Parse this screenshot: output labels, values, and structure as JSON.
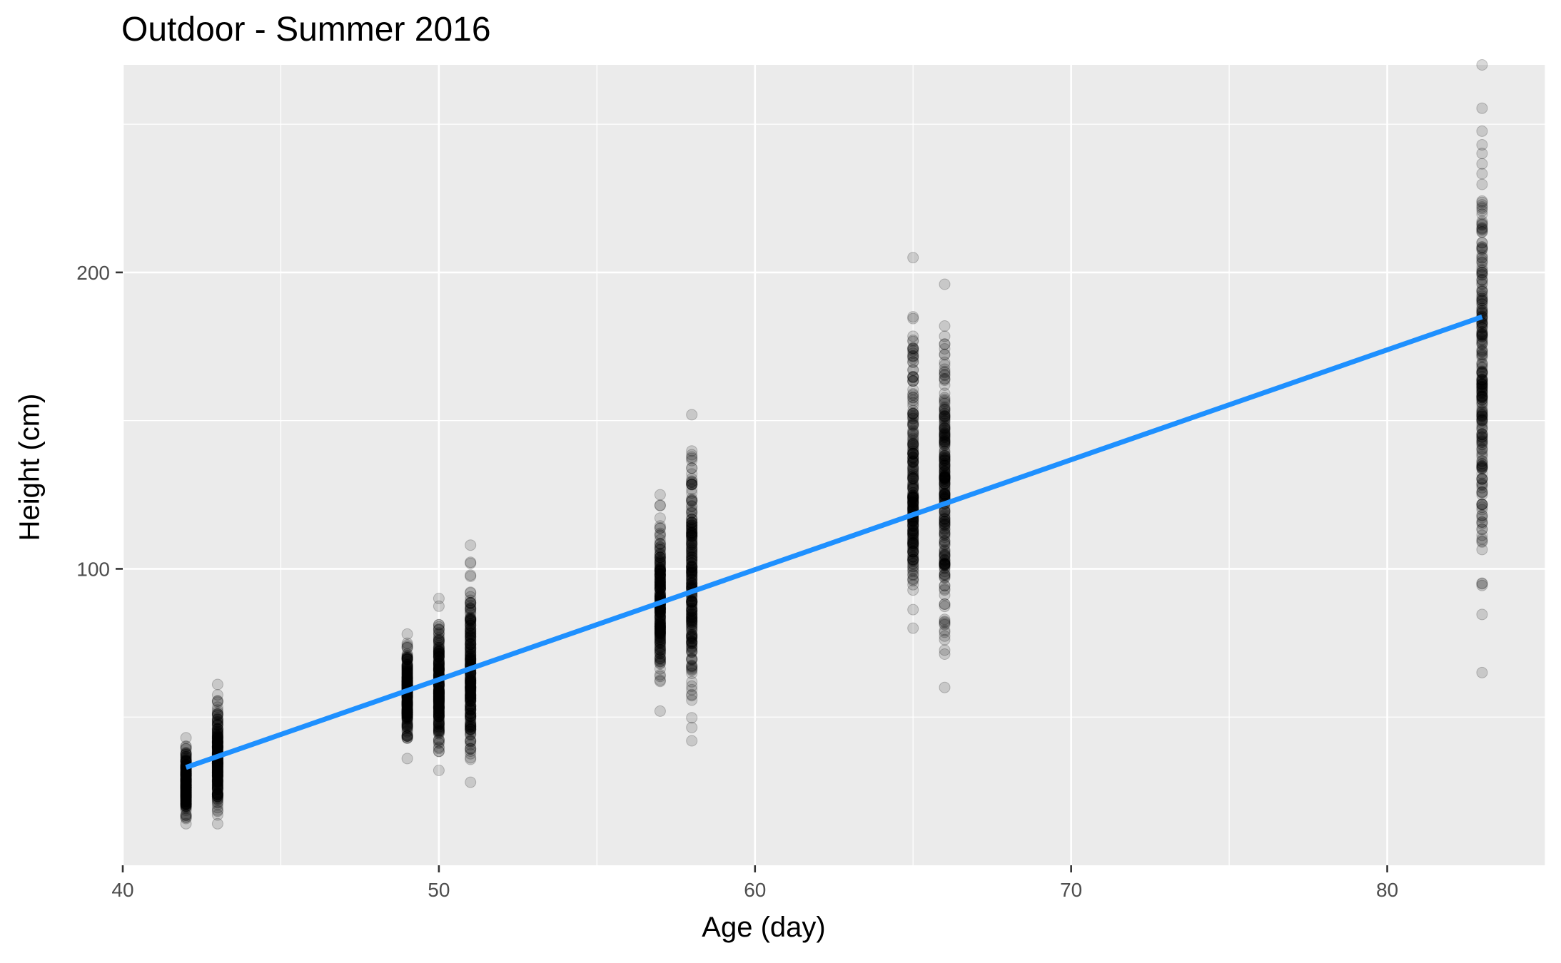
{
  "chart_data": {
    "type": "scatter",
    "title": "Outdoor - Summer 2016",
    "xlabel": "Age (day)",
    "ylabel": "Height (cm)",
    "xlim": [
      40,
      85
    ],
    "ylim": [
      0,
      270
    ],
    "x_ticks": [
      40,
      50,
      60,
      70,
      80
    ],
    "y_ticks": [
      100,
      200
    ],
    "x_minor_grid": [
      45,
      55,
      65,
      75,
      85
    ],
    "y_minor_grid": [
      50,
      150,
      250
    ],
    "grid": true,
    "panel_background": "#EBEBEB",
    "point_color": "#000000",
    "point_alpha": 0.15,
    "line_color": "#1E90FF",
    "groups": [
      {
        "x": 42,
        "min": 14,
        "max": 43,
        "center": 27
      },
      {
        "x": 43,
        "min": 14,
        "max": 61,
        "center": 35
      },
      {
        "x": 49,
        "min": 36,
        "max": 78,
        "center": 58
      },
      {
        "x": 50,
        "min": 32,
        "max": 90,
        "center": 60
      },
      {
        "x": 51,
        "min": 28,
        "max": 108,
        "center": 63
      },
      {
        "x": 57,
        "min": 52,
        "max": 125,
        "center": 88
      },
      {
        "x": 58,
        "min": 42,
        "max": 152,
        "center": 95
      },
      {
        "x": 65,
        "min": 80,
        "max": 205,
        "center": 125
      },
      {
        "x": 66,
        "min": 60,
        "max": 196,
        "center": 130
      },
      {
        "x": 83,
        "min": 65,
        "max": 270,
        "center": 165
      }
    ],
    "series": [
      {
        "type": "regression-line",
        "x": [
          42,
          83
        ],
        "y": [
          33,
          185
        ]
      }
    ]
  }
}
